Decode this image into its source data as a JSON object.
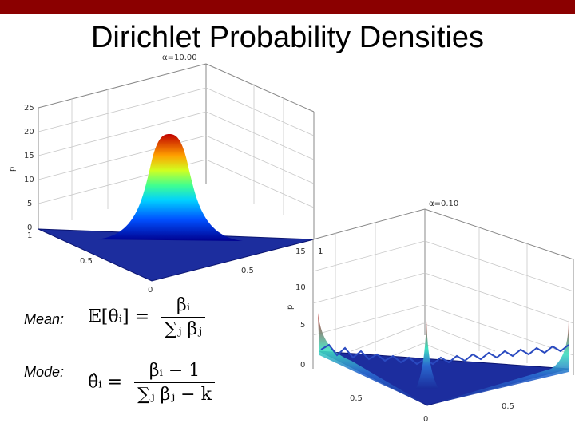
{
  "header": {
    "color": "#8b0000"
  },
  "slide": {
    "title": "Dirichlet Probability Densities"
  },
  "plot1": {
    "alpha_label": "α=10.00",
    "z_ticks": [
      "25",
      "20",
      "15",
      "10",
      "5",
      "0"
    ],
    "axis_label": "p",
    "corner_ticks": [
      "1",
      "0.5",
      "0",
      "0.5",
      "1"
    ]
  },
  "plot2": {
    "alpha_label": "α=0.10",
    "z_ticks": [
      "15",
      "10",
      "5",
      "0"
    ],
    "axis_label": "p",
    "corner_ticks": [
      "1",
      "0.5",
      "0",
      "0.5"
    ]
  },
  "formulas": {
    "mean_label": "Mean:",
    "mode_label": "Mode:",
    "mean_lhs": "𝔼[θᵢ] =",
    "mean_num": "βᵢ",
    "mean_den": "∑ⱼ βⱼ",
    "mode_lhs": "θ̂ᵢ =",
    "mode_num": "βᵢ − 1",
    "mode_den": "∑ⱼ βⱼ − k"
  }
}
